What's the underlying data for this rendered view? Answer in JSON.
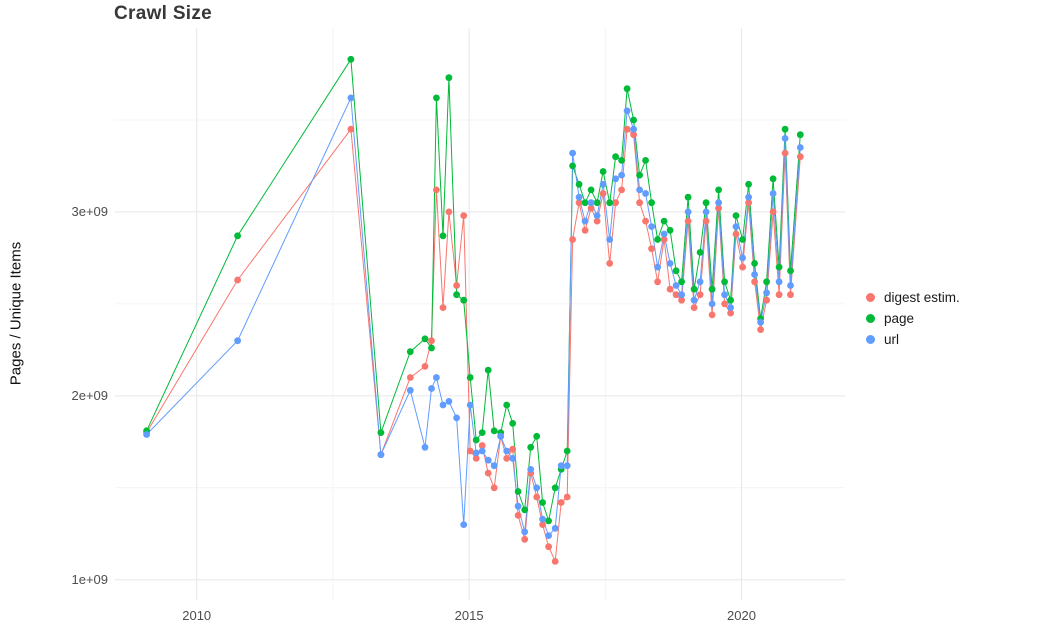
{
  "chart_data": {
    "type": "line",
    "title": "Crawl Size",
    "xlabel": "",
    "ylabel": "Pages / Unique Items",
    "values_unit": "pages (x1e9)",
    "grid": true,
    "legend_position": "right",
    "xlim": [
      2008.5,
      2021.9
    ],
    "ylim": [
      0.89,
      4.0
    ],
    "x_ticks": [
      {
        "value": 2010,
        "label": "2010"
      },
      {
        "value": 2015,
        "label": "2015"
      },
      {
        "value": 2020,
        "label": "2020"
      }
    ],
    "y_ticks": [
      {
        "value": 1,
        "label": "1e+09"
      },
      {
        "value": 2,
        "label": "2e+09"
      },
      {
        "value": 3,
        "label": "3e+09"
      }
    ],
    "x_minor": [
      2012.5,
      2017.5
    ],
    "y_minor": [
      1.5,
      2.5,
      3.5
    ],
    "x": [
      2009.08,
      2010.75,
      2012.83,
      2013.38,
      2013.92,
      2014.19,
      2014.31,
      2014.4,
      2014.52,
      2014.63,
      2014.77,
      2014.9,
      2015.02,
      2015.13,
      2015.24,
      2015.35,
      2015.46,
      2015.58,
      2015.69,
      2015.8,
      2015.9,
      2016.02,
      2016.13,
      2016.24,
      2016.35,
      2016.46,
      2016.58,
      2016.69,
      2016.8,
      2016.9,
      2017.02,
      2017.13,
      2017.24,
      2017.35,
      2017.46,
      2017.58,
      2017.69,
      2017.8,
      2017.9,
      2018.02,
      2018.13,
      2018.24,
      2018.35,
      2018.46,
      2018.58,
      2018.69,
      2018.8,
      2018.9,
      2019.02,
      2019.13,
      2019.24,
      2019.35,
      2019.46,
      2019.58,
      2019.69,
      2019.8,
      2019.9,
      2020.02,
      2020.13,
      2020.24,
      2020.35,
      2020.46,
      2020.58,
      2020.69,
      2020.8,
      2020.9,
      2021.08
    ],
    "series": [
      {
        "name": "digest estim.",
        "color": "#F8766D",
        "values": [
          1.8,
          2.63,
          3.45,
          1.68,
          2.1,
          2.16,
          2.3,
          3.12,
          2.48,
          3.0,
          2.6,
          2.98,
          1.7,
          1.66,
          1.73,
          1.58,
          1.5,
          1.78,
          1.66,
          1.71,
          1.35,
          1.22,
          1.58,
          1.45,
          1.3,
          1.18,
          1.1,
          1.42,
          1.45,
          2.85,
          3.05,
          2.9,
          3.02,
          2.95,
          3.1,
          2.72,
          3.05,
          3.12,
          3.45,
          3.42,
          3.05,
          2.95,
          2.8,
          2.62,
          2.85,
          2.58,
          2.55,
          2.52,
          2.95,
          2.48,
          2.55,
          2.95,
          2.44,
          3.02,
          2.5,
          2.45,
          2.88,
          2.7,
          3.05,
          2.62,
          2.36,
          2.52,
          3.0,
          2.55,
          3.32,
          2.55,
          3.3
        ]
      },
      {
        "name": "page",
        "color": "#00BA38",
        "values": [
          1.81,
          2.87,
          3.83,
          1.8,
          2.24,
          2.31,
          2.26,
          3.62,
          2.87,
          3.73,
          2.55,
          2.52,
          2.1,
          1.76,
          1.8,
          2.14,
          1.81,
          1.8,
          1.95,
          1.85,
          1.48,
          1.38,
          1.72,
          1.78,
          1.42,
          1.32,
          1.5,
          1.6,
          1.7,
          3.25,
          3.15,
          3.05,
          3.12,
          3.05,
          3.22,
          3.05,
          3.3,
          3.28,
          3.67,
          3.5,
          3.2,
          3.28,
          3.05,
          2.85,
          2.95,
          2.9,
          2.68,
          2.62,
          3.08,
          2.58,
          2.78,
          3.05,
          2.58,
          3.12,
          2.62,
          2.52,
          2.98,
          2.85,
          3.15,
          2.72,
          2.42,
          2.62,
          3.18,
          2.7,
          3.45,
          2.68,
          3.42
        ]
      },
      {
        "name": "url",
        "color": "#619CFF",
        "values": [
          1.79,
          2.3,
          3.62,
          1.68,
          2.03,
          1.72,
          2.04,
          2.1,
          1.95,
          1.97,
          1.88,
          1.3,
          1.95,
          1.69,
          1.7,
          1.65,
          1.62,
          1.78,
          1.7,
          1.66,
          1.4,
          1.26,
          1.6,
          1.5,
          1.33,
          1.24,
          1.28,
          1.62,
          1.62,
          3.32,
          3.08,
          2.95,
          3.05,
          2.98,
          3.15,
          2.85,
          3.18,
          3.2,
          3.55,
          3.45,
          3.12,
          3.1,
          2.92,
          2.7,
          2.88,
          2.72,
          2.6,
          2.55,
          3.0,
          2.52,
          2.62,
          3.0,
          2.5,
          3.05,
          2.55,
          2.48,
          2.92,
          2.75,
          3.08,
          2.66,
          2.4,
          2.56,
          3.1,
          2.62,
          3.4,
          2.6,
          3.35
        ]
      }
    ]
  }
}
